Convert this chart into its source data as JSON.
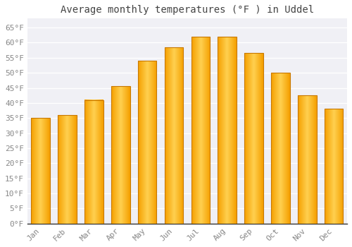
{
  "title": "Average monthly temperatures (°F ) in Uddel",
  "months": [
    "Jan",
    "Feb",
    "Mar",
    "Apr",
    "May",
    "Jun",
    "Jul",
    "Aug",
    "Sep",
    "Oct",
    "Nov",
    "Dec"
  ],
  "values": [
    35,
    36,
    41,
    45.5,
    54,
    58.5,
    62,
    62,
    56.5,
    50,
    42.5,
    38
  ],
  "bar_color_center": "#FFD050",
  "bar_color_edge": "#F5A000",
  "bar_outline_color": "#C87800",
  "background_color": "#FFFFFF",
  "plot_bg_color": "#F0F0F5",
  "yticks": [
    0,
    5,
    10,
    15,
    20,
    25,
    30,
    35,
    40,
    45,
    50,
    55,
    60,
    65
  ],
  "ylim": [
    0,
    68
  ],
  "title_fontsize": 10,
  "tick_fontsize": 8,
  "grid_color": "#FFFFFF",
  "tick_color": "#888888"
}
